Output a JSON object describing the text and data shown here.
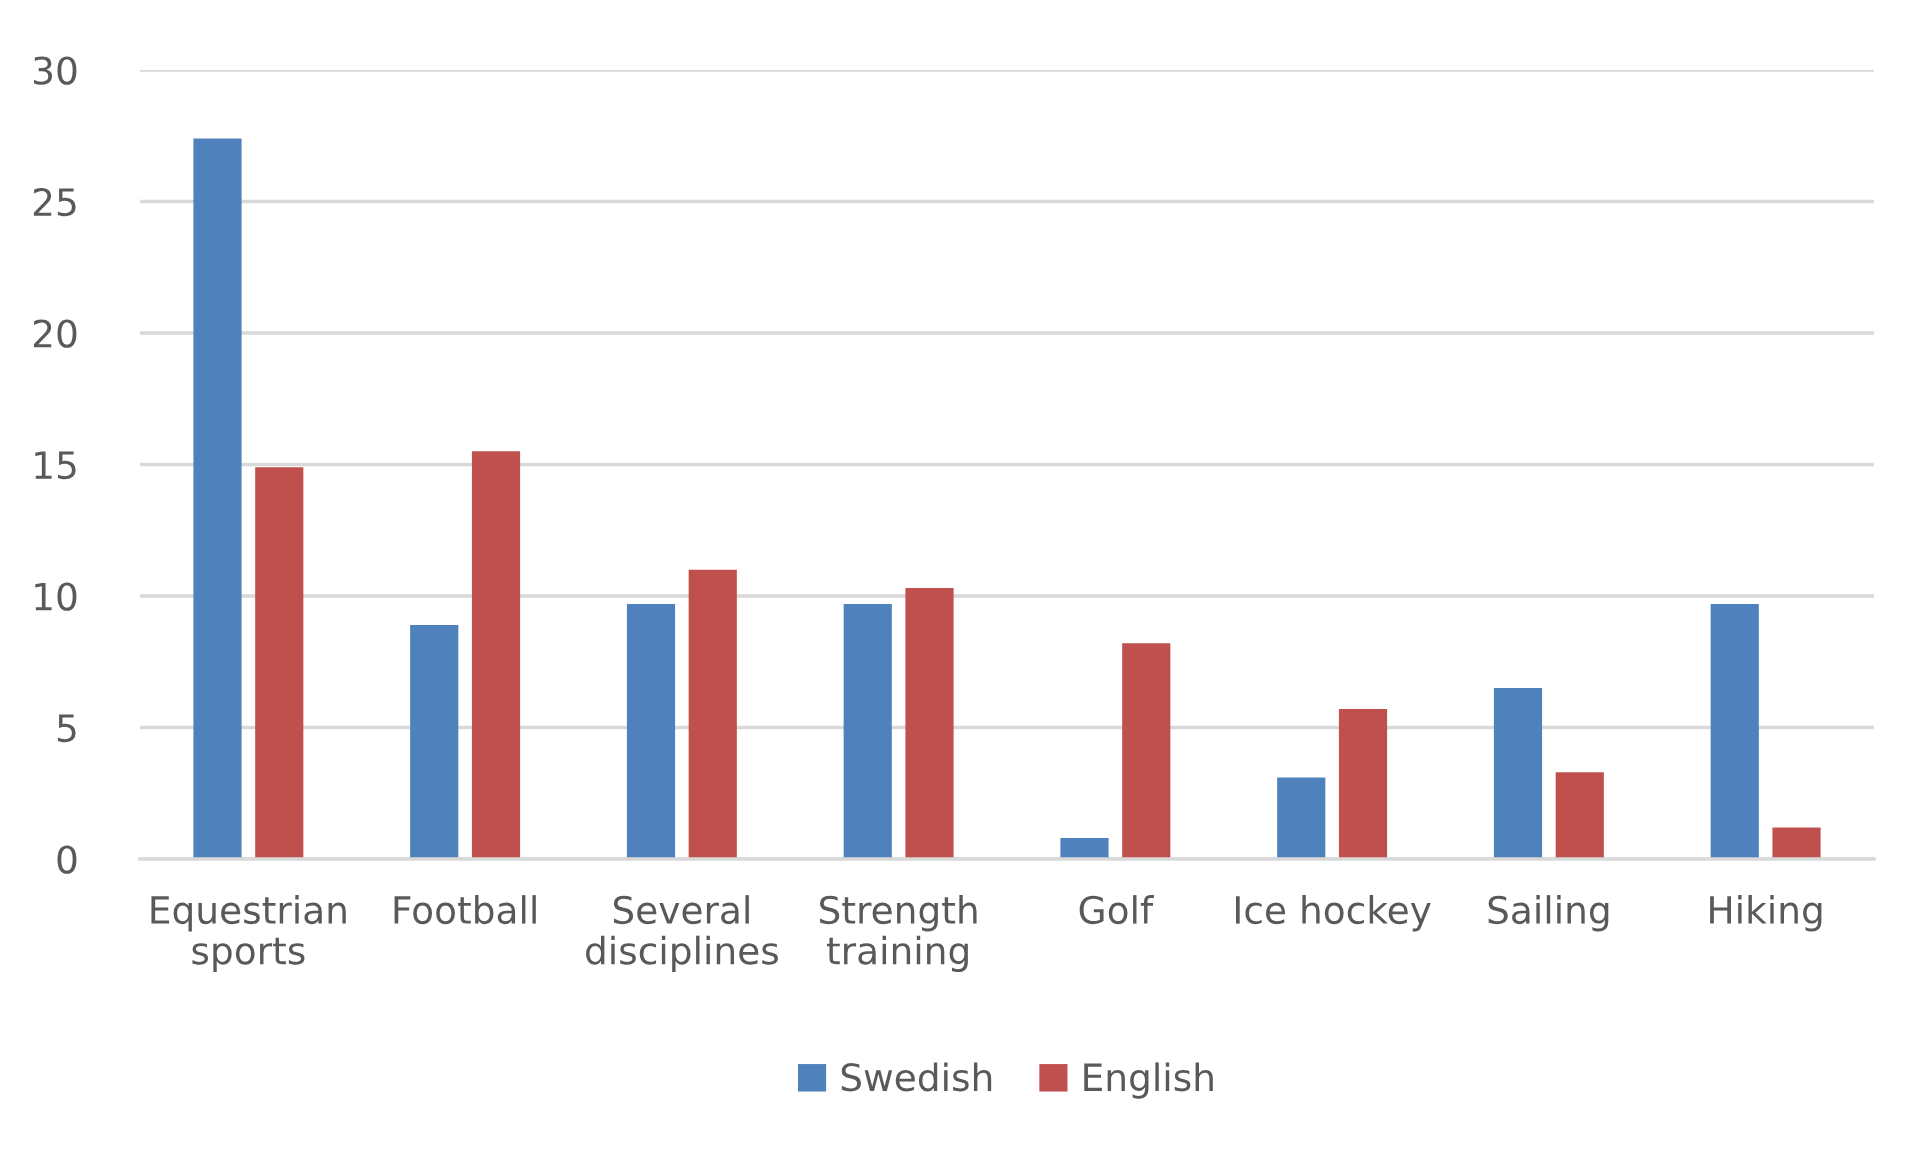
{
  "chart_data": {
    "type": "bar",
    "categories": [
      "Equestrian\nsports",
      "Football",
      "Several\ndisciplines",
      "Strength\ntraining",
      "Golf",
      "Ice hockey",
      "Sailing",
      "Hiking"
    ],
    "series": [
      {
        "name": "Swedish",
        "color": "#4f81bd",
        "values": [
          27.4,
          8.9,
          9.7,
          9.7,
          0.8,
          3.1,
          6.5,
          9.7
        ]
      },
      {
        "name": "English",
        "color": "#c0504d",
        "values": [
          14.9,
          15.5,
          11.0,
          10.3,
          8.2,
          5.7,
          3.3,
          1.2
        ]
      }
    ],
    "ylim": [
      0,
      30
    ],
    "yticks": [
      0,
      5,
      10,
      15,
      20,
      25,
      30
    ],
    "grid": "y",
    "legend": "bottom"
  }
}
